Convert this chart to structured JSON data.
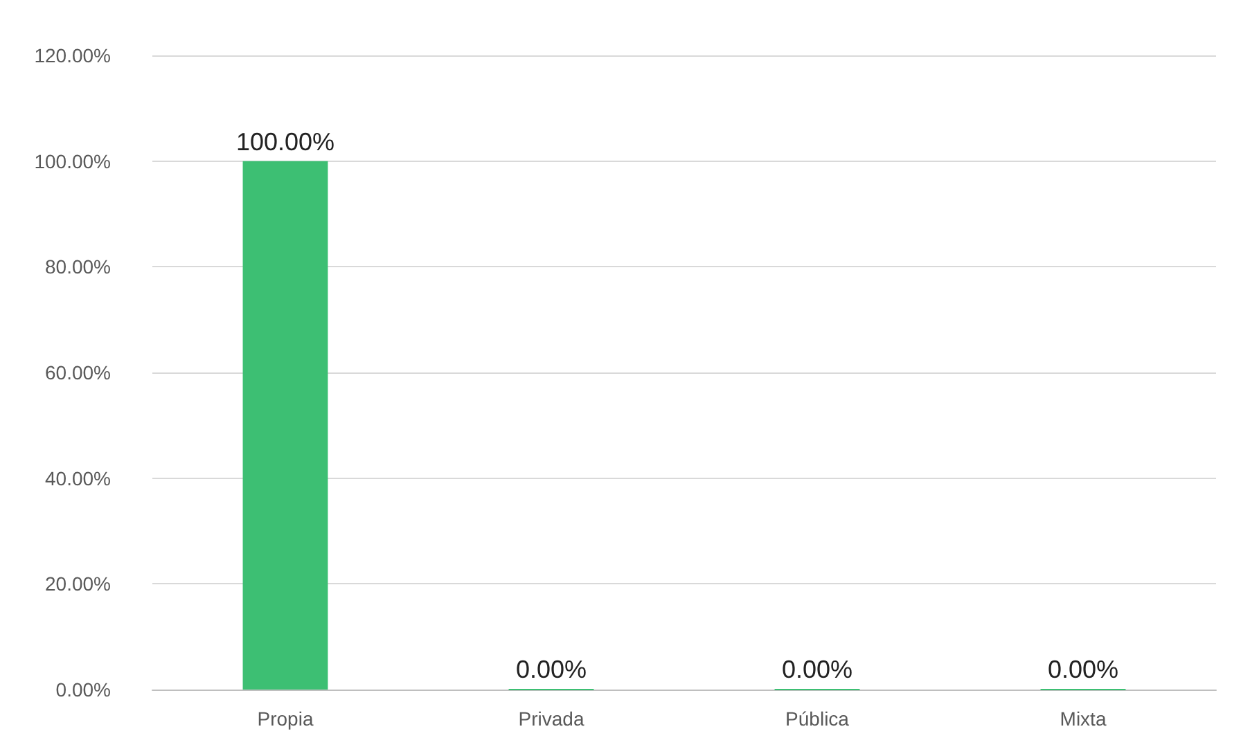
{
  "chart_data": {
    "type": "bar",
    "categories": [
      "Propia",
      "Privada",
      "Pública",
      "Mixta"
    ],
    "values": [
      100,
      0,
      0,
      0
    ],
    "color": "#3dbf73",
    "value_labels": [
      "100.00%",
      "0.00%",
      "0.00%",
      "0.00%"
    ],
    "ylim": [
      0,
      120
    ],
    "yticks": [
      {
        "value": 0,
        "label": "0.00%"
      },
      {
        "value": 20,
        "label": "20.00%"
      },
      {
        "value": 40,
        "label": "40.00%"
      },
      {
        "value": 60,
        "label": "60.00%"
      },
      {
        "value": 80,
        "label": "80.00%"
      },
      {
        "value": 100,
        "label": "100.00%"
      },
      {
        "value": 120,
        "label": "120.00%"
      }
    ],
    "grid": "y"
  }
}
